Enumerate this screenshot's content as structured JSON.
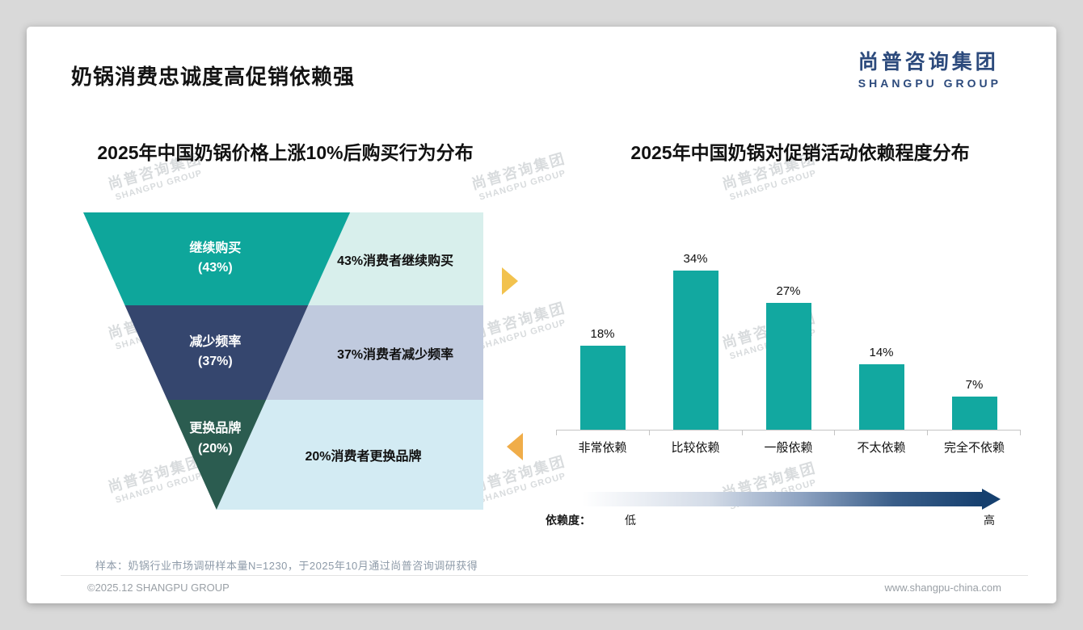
{
  "header": {
    "title": "奶锅消费忠诚度高促销依赖强",
    "logo": {
      "cn": "尚普咨询集团",
      "en": "SHANGPU GROUP",
      "color": "#2c4a7c"
    }
  },
  "watermark": {
    "cn": "尚普咨询集团",
    "en": "SHANGPU GROUP"
  },
  "chart_data": [
    {
      "type": "funnel",
      "title": "2025年中国奶锅价格上涨10%后购买行为分布",
      "categories": [
        "继续购买",
        "减少频率",
        "更换品牌"
      ],
      "values": [
        43,
        37,
        20
      ],
      "value_labels": [
        "(43%)",
        "(37%)",
        "(20%)"
      ],
      "annotations": [
        "43%消费者继续购买",
        "37%消费者减少频率",
        "20%消费者更换品牌"
      ],
      "segment_colors": [
        "#0ea69b",
        "#35466e",
        "#2b5c50"
      ],
      "annotation_bg": [
        "#d8efec",
        "#c0cade",
        "#d3ebf3"
      ]
    },
    {
      "type": "bar",
      "title": "2025年中国奶锅对促销活动依赖程度分布",
      "categories": [
        "非常依赖",
        "比较依赖",
        "一般依赖",
        "不太依赖",
        "完全不依赖"
      ],
      "values": [
        18,
        34,
        27,
        14,
        7
      ],
      "data_labels": [
        "18%",
        "34%",
        "27%",
        "14%",
        "7%"
      ],
      "ylim": [
        0,
        40
      ],
      "bar_color": "#12a8a0",
      "grid": "off",
      "legend": "none",
      "axis_note": {
        "label": "依赖度：",
        "low": "低",
        "high": "高"
      }
    }
  ],
  "footnote": "样本：奶锅行业市场调研样本量N=1230，于2025年10月通过尚普咨询调研获得",
  "footer": {
    "copyright": "©2025.12 SHANGPU GROUP",
    "website": "www.shangpu-china.com"
  }
}
